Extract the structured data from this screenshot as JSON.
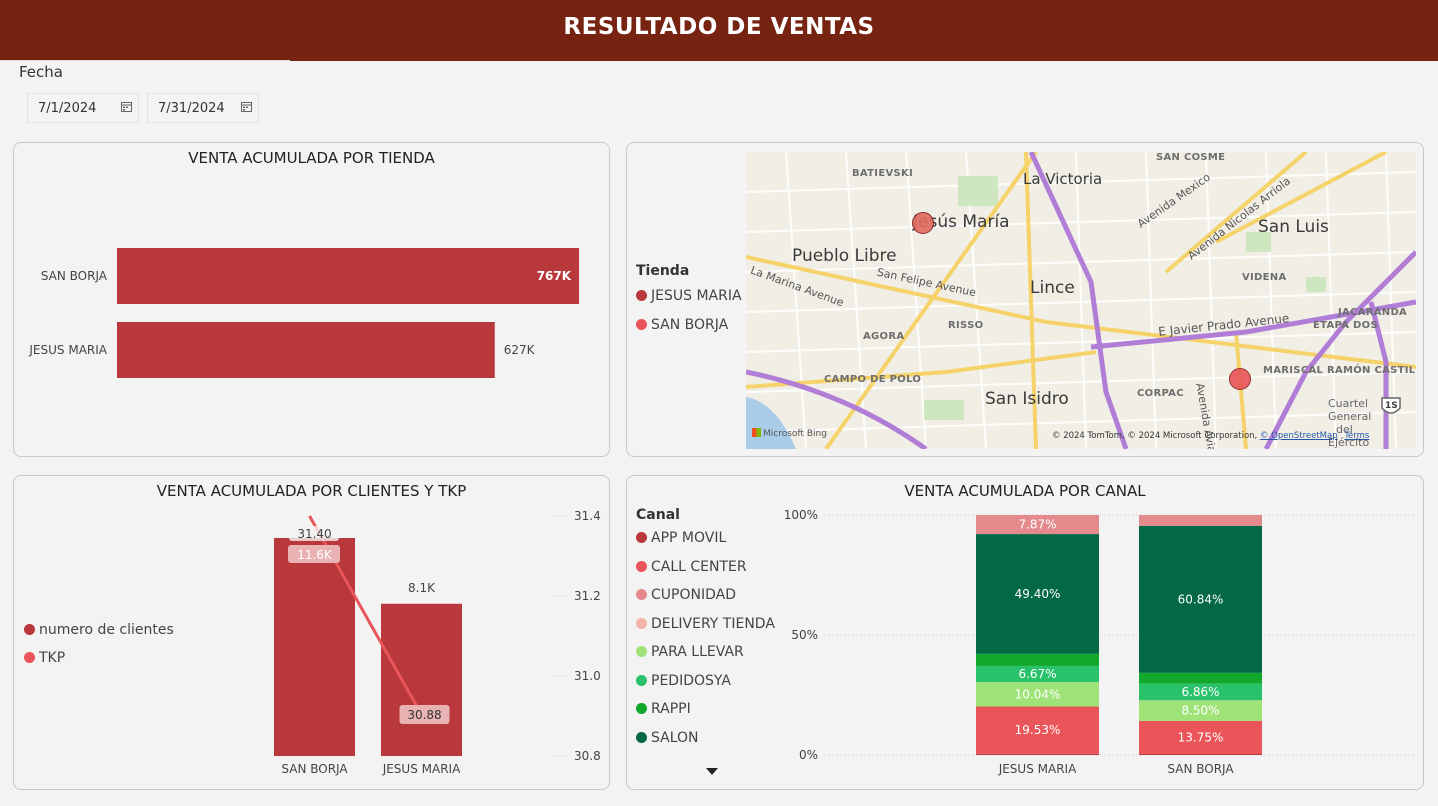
{
  "header": {
    "title": "RESULTADO DE VENTAS"
  },
  "filters": {
    "label": "Fecha",
    "start_date": "7/1/2024",
    "end_date": "7/31/2024",
    "calendar_icon": "calendar-icon"
  },
  "colors": {
    "header_bg": "#762411",
    "bar_red": "#b8383b",
    "jesus_maria": "#b8383b",
    "san_borja": "#e95558",
    "app_movil": "#b8383b",
    "call_center": "#e95558",
    "cuponidad": "#e58a8c",
    "delivery_tienda": "#f4b3a8",
    "para_llevar": "#9fe378",
    "pedidosya": "#29c26b",
    "rappi": "#12a82c",
    "salon": "#026944"
  },
  "map": {
    "legend_title": "Tienda",
    "legend_items": [
      "JESUS MARIA",
      "SAN BORJA"
    ],
    "labels": {
      "batievski": "BATIEVSKI",
      "la_victoria": "La Victoria",
      "san_cosme": "SAN COSME",
      "jesus_maria": "Jesús María",
      "pueblo_libre": "Pueblo Libre",
      "san_luis": "San Luis",
      "lince": "Lince",
      "la_marina": "La Marina Avenue",
      "san_felipe": "San Felipe Avenue",
      "av_mexico": "Avenida Mexico",
      "av_nicolas": "Avenida Nicolas Arriola",
      "videna": "VIDENA",
      "javier_prado": "E Javier Prado Avenue",
      "jacaranda": "JACARANDA",
      "etapa_dos": "ETAPA DOS",
      "agora": "AGORA",
      "risso": "RISSO",
      "campo_de_polo": "CAMPO DE POLO",
      "san_isidro": "San Isidro",
      "corpac": "CORPAC",
      "mariscal": "MARISCAL RAMÓN CASTILL",
      "av_aviacion": "Avenida Aviación",
      "cuartel": "Cuartel",
      "general": "General",
      "del": "del",
      "ejercito": "Ejército",
      "highway": "1S",
      "bing": "Microsoft Bing",
      "copyright": "© 2024 TomTom, © 2024 Microsoft Corporation,",
      "osm": "© OpenStreetMap",
      "terms": "Terms"
    }
  },
  "chart_data": [
    {
      "type": "bar",
      "title": "VENTA ACUMULADA POR TIENDA",
      "orientation": "horizontal",
      "categories": [
        "SAN BORJA",
        "JESUS MARIA"
      ],
      "values": [
        767000,
        627000
      ],
      "data_labels": [
        "767K",
        "627K"
      ],
      "xlim": [
        0,
        820000
      ]
    },
    {
      "type": "bar",
      "title": "VENTA ACUMULADA POR CLIENTES Y TKP",
      "categories": [
        "SAN BORJA",
        "JESUS MARIA"
      ],
      "series": [
        {
          "name": "numero de clientes",
          "type": "bar",
          "values": [
            11600,
            8100
          ],
          "data_labels": [
            "11.6K",
            "8.1K"
          ]
        },
        {
          "name": "TKP",
          "type": "line",
          "axis": "right",
          "values": [
            31.4,
            30.88
          ],
          "data_labels": [
            "31.40",
            "30.88"
          ]
        }
      ],
      "ylim_left": [
        0,
        11600
      ],
      "ylim_right": [
        30.8,
        31.4
      ],
      "right_ticks": [
        "31.4",
        "31.2",
        "31.0",
        "30.8"
      ],
      "right_tick_values": [
        31.4,
        31.2,
        31.0,
        30.8
      ],
      "legend": "left"
    },
    {
      "type": "bar",
      "stacked": "100%",
      "title": "VENTA ACUMULADA POR CANAL",
      "legend_title": "Canal",
      "legend": "left",
      "categories": [
        "JESUS MARIA",
        "SAN BORJA"
      ],
      "y_ticks": [
        "100%",
        "50%",
        "0%"
      ],
      "series": [
        {
          "name": "APP MOVIL",
          "values": [
            0.5,
            0.4
          ],
          "labels": [
            "",
            ""
          ]
        },
        {
          "name": "CALL CENTER",
          "values": [
            19.53,
            13.75
          ],
          "labels": [
            "19.53%",
            "13.75%"
          ]
        },
        {
          "name": "CUPONIDAD",
          "values": [
            0.0,
            0.0
          ],
          "labels": [
            "",
            ""
          ]
        },
        {
          "name": "DELIVERY TIENDA",
          "values": [
            0.0,
            0.0
          ],
          "labels": [
            "",
            ""
          ]
        },
        {
          "name": "PARA LLEVAR",
          "values": [
            10.04,
            8.5
          ],
          "labels": [
            "10.04%",
            "8.50%"
          ]
        },
        {
          "name": "PEDIDOSYA",
          "values": [
            6.67,
            6.86
          ],
          "labels": [
            "6.67%",
            "6.86%"
          ]
        },
        {
          "name": "RAPPI",
          "values": [
            5.0,
            4.5
          ],
          "labels": [
            "",
            ""
          ]
        },
        {
          "name": "SALON",
          "values": [
            49.4,
            60.84
          ],
          "labels": [
            "49.40%",
            "60.84%"
          ]
        },
        {
          "name": "",
          "values": [
            7.87,
            4.5
          ],
          "labels": [
            "7.87%",
            ""
          ]
        }
      ]
    }
  ]
}
